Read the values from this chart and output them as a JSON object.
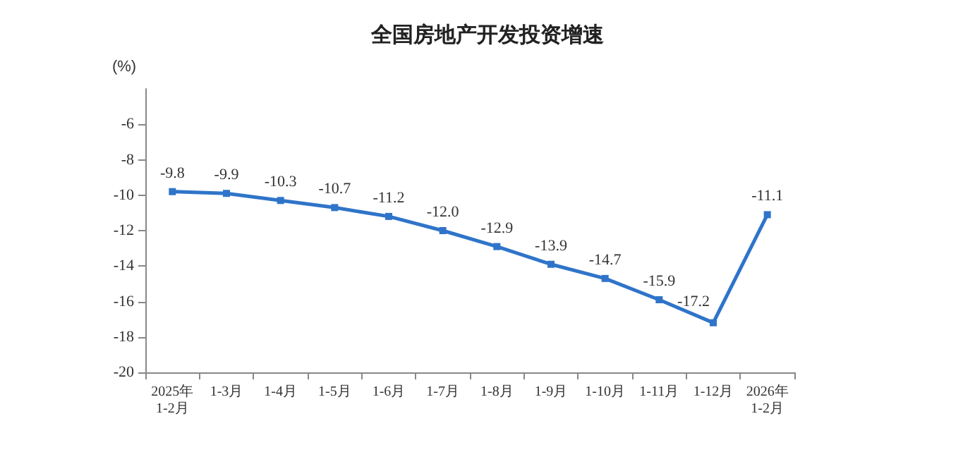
{
  "chart_data": {
    "type": "line",
    "title": "全国房地产开发投资增速",
    "ylabel": "(%)",
    "categories": [
      "2025年\n1-2月",
      "1-3月",
      "1-4月",
      "1-5月",
      "1-6月",
      "1-7月",
      "1-8月",
      "1-9月",
      "1-10月",
      "1-11月",
      "1-12月",
      "2026年\n1-2月"
    ],
    "series": [
      {
        "color": "#2f74c9",
        "values": [
          -9.8,
          -9.9,
          -10.3,
          -10.7,
          -11.2,
          -12.0,
          -12.9,
          -13.9,
          -14.7,
          -15.9,
          -17.2,
          -11.1
        ],
        "value_labels": [
          "-9.8",
          "-9.9",
          "-10.3",
          "-10.7",
          "-11.2",
          "-12.0",
          "-12.9",
          "-13.9",
          "-14.7",
          "-15.9",
          "-17.2",
          "-11.1"
        ]
      }
    ],
    "ylim": [
      -20,
      -4
    ],
    "yticks": [
      -20,
      -18,
      -16,
      -14,
      -12,
      -10,
      -8,
      -6
    ],
    "grid": false,
    "marker": "square",
    "line_style": "solid"
  }
}
